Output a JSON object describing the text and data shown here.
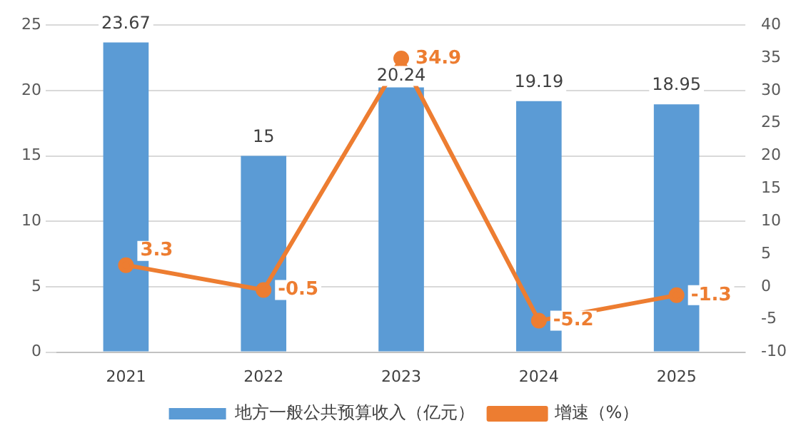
{
  "chart_data": {
    "type": "bar",
    "categories": [
      "2021",
      "2022",
      "2023",
      "2024",
      "2025"
    ],
    "series": [
      {
        "name": "地方一般公共预算收入（亿元）",
        "color": "#5b9bd5",
        "values": [
          23.67,
          15,
          20.24,
          19.19,
          18.95
        ]
      },
      {
        "name": "增速（%）",
        "type": "line",
        "axis": "y2",
        "color": "#ed7d31",
        "values": [
          3.3,
          -0.5,
          34.9,
          -5.2,
          -1.3
        ]
      }
    ],
    "ylim": [
      0,
      25
    ],
    "yticks": [
      0,
      5,
      10,
      15,
      20,
      25
    ],
    "y2lim": [
      -10,
      40
    ],
    "y2ticks": [
      -10,
      -5,
      0,
      5,
      10,
      15,
      20,
      25,
      30,
      35,
      40
    ],
    "grid": "y",
    "legend": "bottom",
    "marker": "circle",
    "line_style": "solid",
    "data_labels": true
  }
}
